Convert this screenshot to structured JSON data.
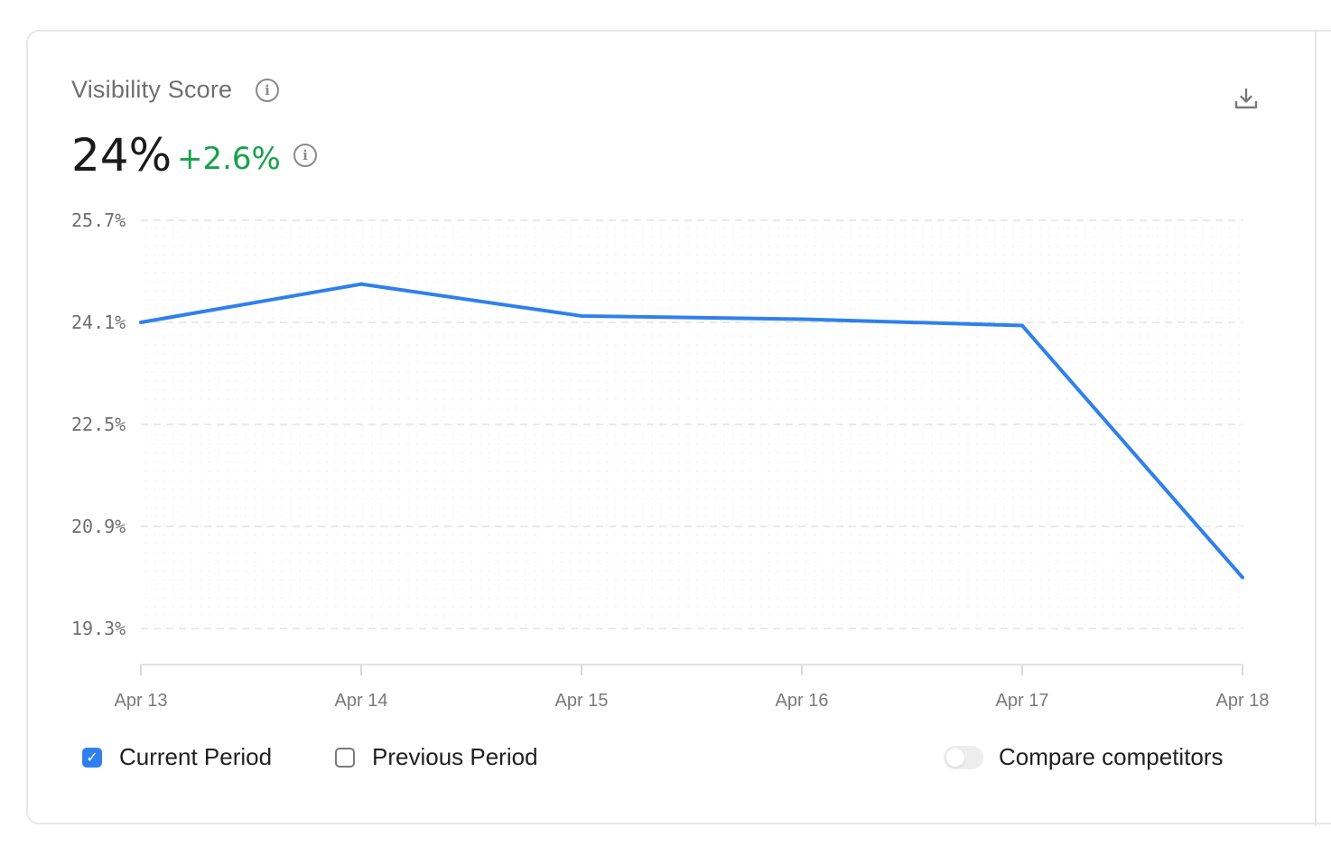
{
  "header": {
    "title": "Visibility Score",
    "value": "24%",
    "delta": "+2.6%",
    "info_glyph": "i"
  },
  "chart_data": {
    "type": "line",
    "x": [
      "Apr 13",
      "Apr 14",
      "Apr 15",
      "Apr 16",
      "Apr 17",
      "Apr 18"
    ],
    "series": [
      {
        "values": [
          24.1,
          24.7,
          24.2,
          24.15,
          24.05,
          20.1
        ]
      }
    ],
    "ytick_labels": [
      "25.7%",
      "24.1%",
      "22.5%",
      "20.9%",
      "19.3%"
    ],
    "ytick_values": [
      25.7,
      24.1,
      22.5,
      20.9,
      19.3
    ],
    "ylim": [
      19.3,
      25.7
    ],
    "grid": true,
    "line_color": "#2f80ed"
  },
  "legend": {
    "current_period": "Current Period",
    "previous_period": "Previous Period",
    "compare_competitors": "Compare competitors",
    "current_checked": true,
    "previous_checked": false,
    "compare_on": false
  },
  "colors": {
    "accent": "#2f80ed",
    "positive": "#16a34a"
  }
}
